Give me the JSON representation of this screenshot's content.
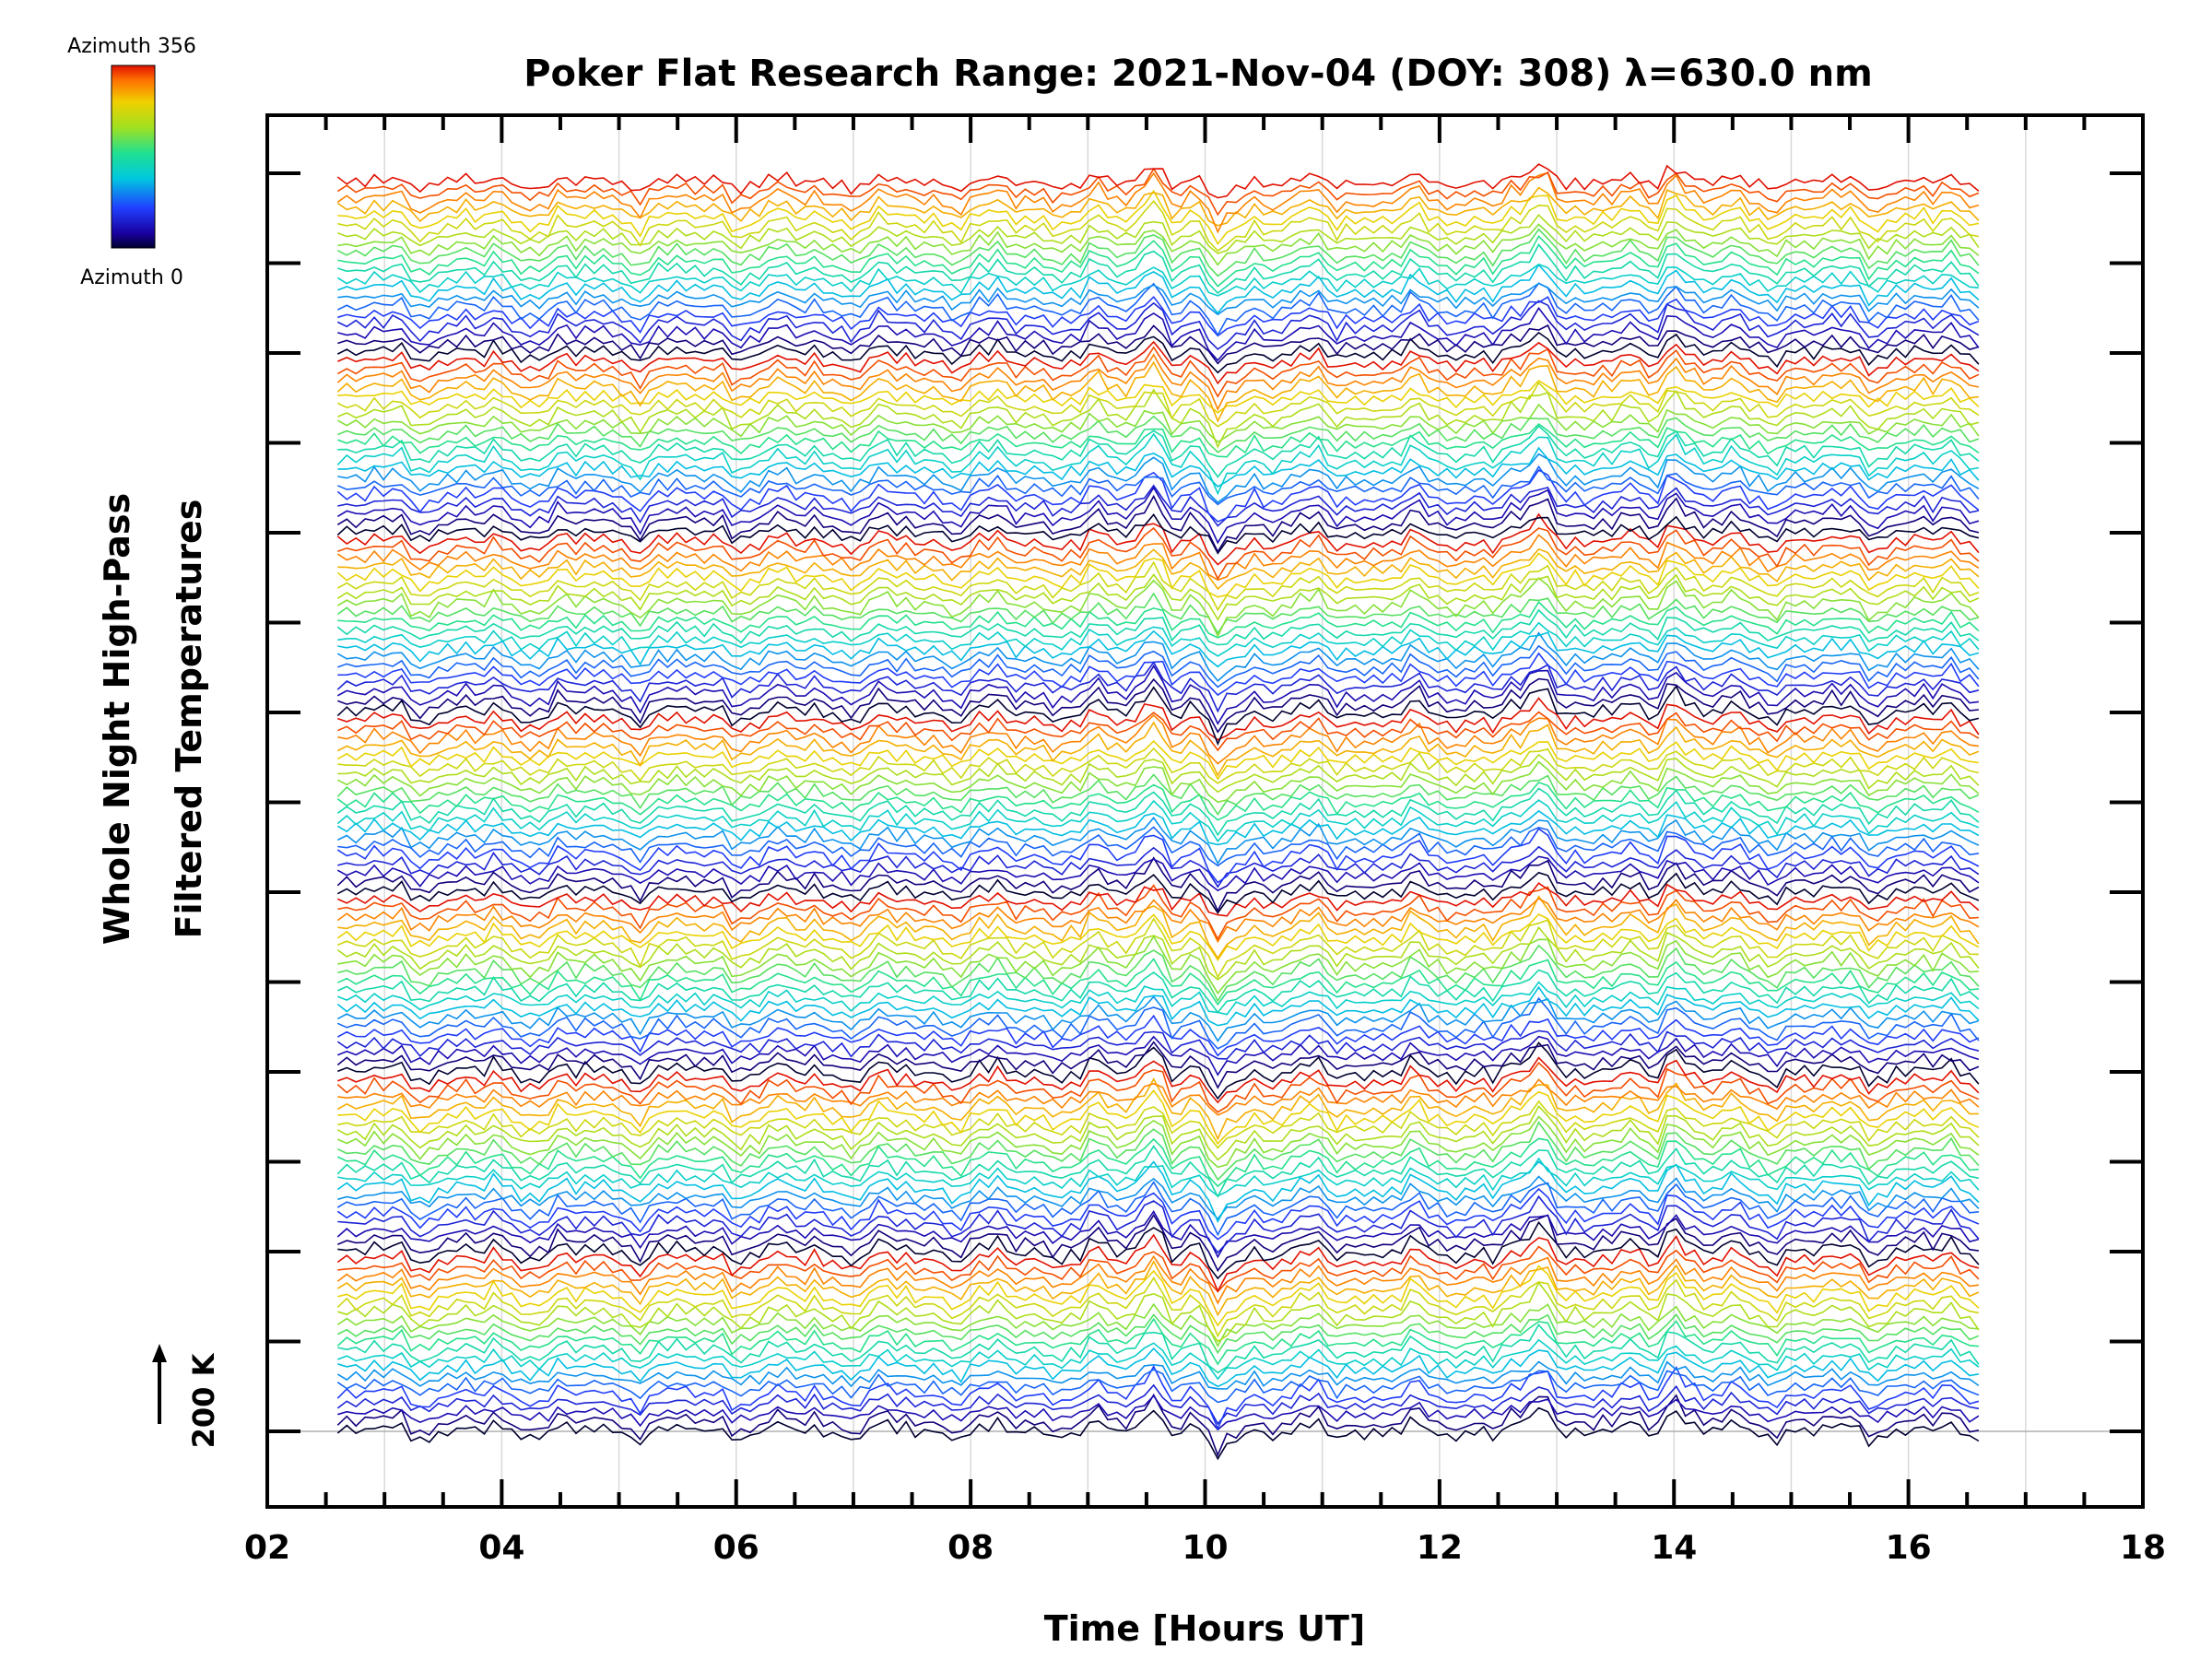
{
  "chart_data": {
    "type": "line",
    "title": "Poker Flat Research Range: 2021-Nov-04 (DOY: 308) λ=630.0 nm",
    "xlabel": "Time [Hours UT]",
    "ylabel_line1": "Whole Night High-Pass",
    "ylabel_line2": "Filtered Temperatures",
    "scale_bar_label": "200 K",
    "xlim": [
      2,
      18
    ],
    "x_ticks": [
      "02",
      "04",
      "06",
      "08",
      "10",
      "12",
      "14",
      "16",
      "18"
    ],
    "x_tick_values": [
      2,
      4,
      6,
      8,
      10,
      12,
      14,
      16,
      18
    ],
    "grid": true,
    "colorbar": {
      "label_top": "Azimuth 356",
      "label_bottom": "Azimuth 0",
      "colormap": "rainbow (black-blue-cyan-green-yellow-red)"
    },
    "series_structure": {
      "description": "Stacked high-pass filtered temperature traces, one per azimuth, colored by azimuth; repeated in 7 bands",
      "x_start": 2.6,
      "x_end": 16.6,
      "band_count": 7,
      "traces_per_band": 20,
      "trace_spacing_K": 50,
      "features": [
        {
          "x": 9.55,
          "effect": "peak"
        },
        {
          "x": 10.1,
          "effect": "dip"
        },
        {
          "x": 12.9,
          "effect": "peak"
        },
        {
          "x": 14.0,
          "effect": "peak"
        }
      ]
    },
    "colors": {
      "axis": "#000000",
      "grid": "#d9d9d9",
      "baseline": "#b0b0b0"
    }
  }
}
